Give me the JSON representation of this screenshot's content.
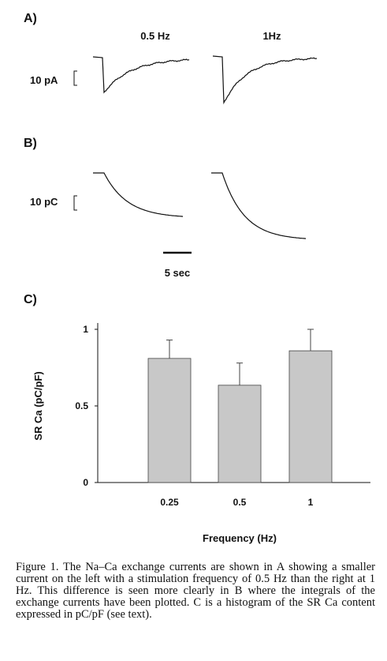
{
  "panels": {
    "a": {
      "label": "A)",
      "left_title": "0.5 Hz",
      "right_title": "1Hz",
      "scale_label": "10 pA"
    },
    "b": {
      "label": "B)",
      "scale_label": "10 pC",
      "time_scale_label": "5 sec"
    },
    "c": {
      "label": "C)"
    }
  },
  "chart_data": {
    "type": "bar",
    "categories": [
      "0.25",
      "0.5",
      "1"
    ],
    "values": [
      0.81,
      0.635,
      0.86
    ],
    "errors": [
      0.12,
      0.145,
      0.14
    ],
    "ylim": [
      0,
      1
    ],
    "yticks": [
      {
        "value": 0,
        "label": "0"
      },
      {
        "value": 0.5,
        "label": "0.5"
      },
      {
        "value": 1,
        "label": "1"
      }
    ],
    "xlabel": "Frequency (Hz)",
    "ylabel": "SR Ca (pC/pF)",
    "bar_color": "#c8c8c8"
  },
  "caption": "Figure 1. The Na–Ca exchange currents are shown in A showing a smaller current on the left with a stimulation frequency of 0.5 Hz than the right at 1 Hz. This difference is seen more clearly in B where the integrals of the exchange currents have been plotted. C is a histogram of the SR Ca content expressed in pC/pF (see text)."
}
